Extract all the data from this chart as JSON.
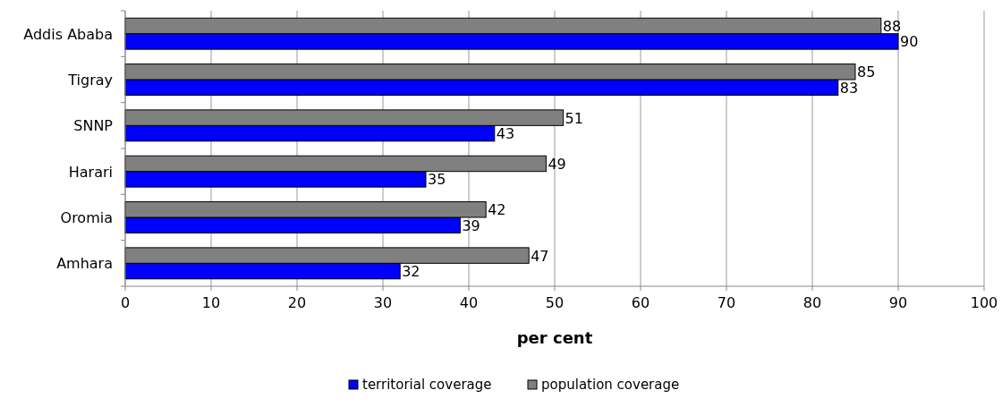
{
  "chart_data": {
    "type": "bar",
    "orientation": "horizontal",
    "xlabel": "per cent",
    "categories": [
      "Addis Ababa",
      "Tigray",
      "SNNP",
      "Harari",
      "Oromia",
      "Amhara"
    ],
    "series": [
      {
        "name": "territorial coverage",
        "color": "#0000ff",
        "values": [
          90,
          83,
          43,
          35,
          39,
          32
        ]
      },
      {
        "name": "population coverage",
        "color": "#808080",
        "values": [
          88,
          85,
          51,
          49,
          42,
          47
        ]
      }
    ],
    "xlim": [
      0,
      100
    ],
    "xticks": [
      0,
      10,
      20,
      30,
      40,
      50,
      60,
      70,
      80,
      90,
      100
    ],
    "grid": "x",
    "legend": "bottom",
    "data_labels": true
  }
}
